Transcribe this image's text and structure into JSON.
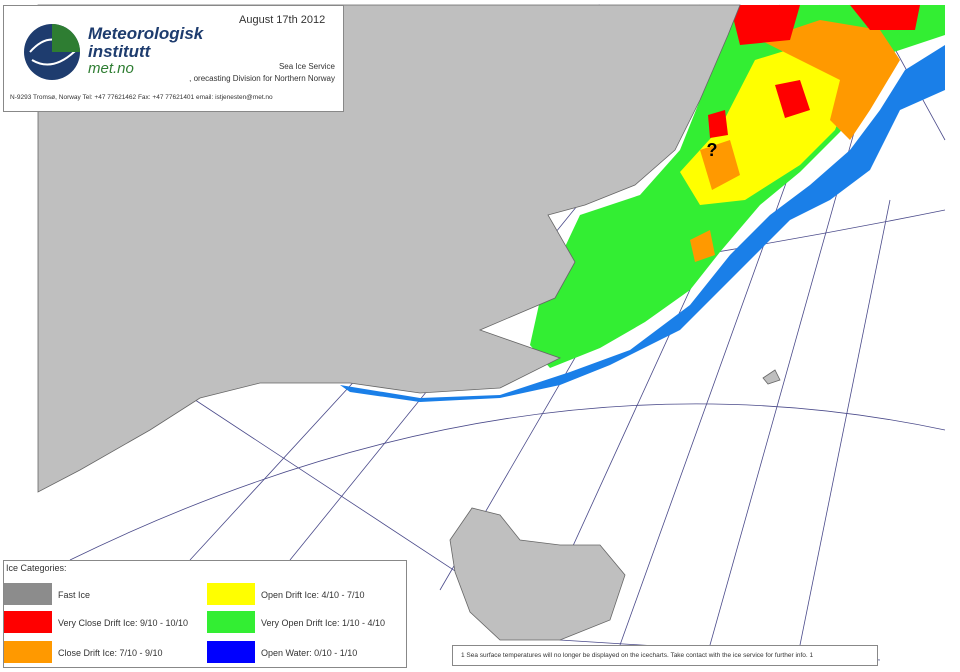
{
  "header": {
    "logo_line1": "Meteorologisk",
    "logo_line2": "institutt",
    "logo_line3": "met.no",
    "date": "August 17th 2012",
    "service": "Sea Ice Service",
    "division": ", orecasting Division for Northern Norway",
    "contact": "N-9293 Tromsø, Norway   Tel: +47 77621462   Fax: +47 77621401   email: istjenesten@met.no"
  },
  "map": {
    "marker": "?"
  },
  "legend": {
    "title": "Ice Categories:",
    "items": [
      {
        "label": "Fast Ice",
        "color": "#8c8c8c"
      },
      {
        "label": "Very Close Drift Ice:  9/10 - 10/10",
        "color": "#ff0000"
      },
      {
        "label": "Close Drift Ice:  7/10 - 9/10",
        "color": "#ff9900"
      },
      {
        "label": "Open Drift Ice:  4/10 - 7/10",
        "color": "#ffff00"
      },
      {
        "label": "Very Open Drift Ice:  1/10 - 4/10",
        "color": "#33ee33"
      },
      {
        "label": "Open Water:  0/10 - 1/10",
        "color": "#0000ff"
      }
    ]
  },
  "footer": {
    "note": "1  Sea surface temperatures will no longer be displayed on the icecharts. Take contact with the ice service for further info.  1"
  }
}
